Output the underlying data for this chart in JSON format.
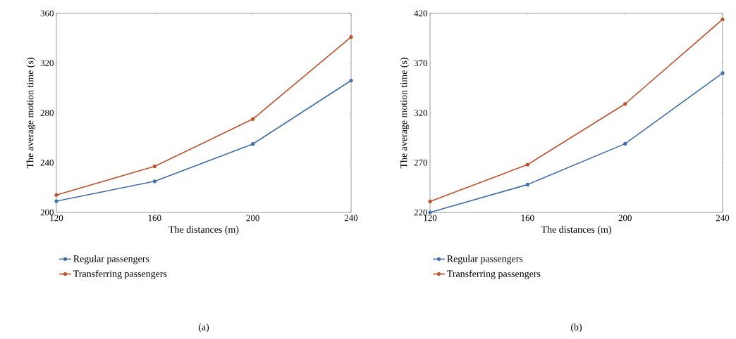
{
  "chart_data": [
    {
      "type": "line",
      "xlabel": "The distances (m)",
      "ylabel": "The average motion time (s)",
      "x": [
        120,
        160,
        200,
        240
      ],
      "xlim": [
        120,
        240
      ],
      "xticks": [
        120,
        160,
        200,
        240
      ],
      "ylim": [
        200,
        360
      ],
      "yticks": [
        200,
        240,
        280,
        320,
        360
      ],
      "marker": "circle",
      "line_style": "solid",
      "grid": false,
      "legend": "bottom",
      "annotations": [
        "(a)"
      ],
      "series": [
        {
          "name": "Regular passengers",
          "color": "#3f6fad",
          "values": [
            209,
            225,
            255,
            306
          ]
        },
        {
          "name": "Transferring passengers",
          "color": "#c0502a",
          "values": [
            214,
            237,
            275,
            341
          ]
        }
      ]
    },
    {
      "type": "line",
      "xlabel": "The distances (m)",
      "ylabel": "The average motion time (s)",
      "x": [
        120,
        160,
        200,
        240
      ],
      "xlim": [
        120,
        240
      ],
      "xticks": [
        120,
        160,
        200,
        240
      ],
      "ylim": [
        220,
        420
      ],
      "yticks": [
        220,
        270,
        320,
        370,
        420
      ],
      "marker": "circle",
      "line_style": "solid",
      "grid": false,
      "legend": "bottom",
      "annotations": [
        "(b)"
      ],
      "series": [
        {
          "name": "Regular passengers",
          "color": "#3f6fad",
          "values": [
            220,
            248,
            289,
            360
          ]
        },
        {
          "name": "Transferring passengers",
          "color": "#c0502a",
          "values": [
            231,
            268,
            329,
            414
          ]
        }
      ]
    }
  ]
}
